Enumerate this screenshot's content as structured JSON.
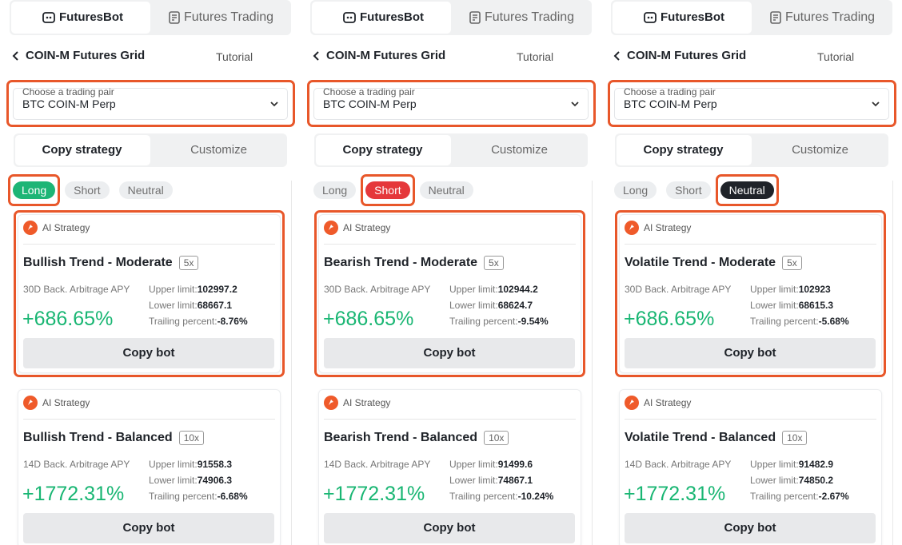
{
  "panels": [
    {
      "tabs": [
        "FuturesBot",
        "Futures Trading"
      ],
      "nav": {
        "back_title": "COIN-M Futures Grid",
        "link": "Tutorial"
      },
      "pair_select": {
        "label": "Choose a trading pair",
        "value": "BTC COIN-M Perp"
      },
      "mode_tabs": [
        "Copy strategy",
        "Customize"
      ],
      "filters": [
        "Long",
        "Short",
        "Neutral"
      ],
      "active_filter": 0,
      "active_filter_color": "#1db576",
      "cards": [
        {
          "badge": "AI Strategy",
          "name": "Bullish Trend - Moderate",
          "leverage": "5x",
          "apy_label": "30D Back. Arbitrage APY",
          "apy": "+686.65%",
          "upper_label": "Upper limit:",
          "upper": "102997.2",
          "lower_label": "Lower limit:",
          "lower": "68667.1",
          "trailing_label": "Trailing percent:",
          "trailing": "-8.76%",
          "button": "Copy bot"
        },
        {
          "badge": "AI Strategy",
          "name": "Bullish Trend - Balanced",
          "leverage": "10x",
          "apy_label": "14D Back. Arbitrage APY",
          "apy": "+1772.31%",
          "upper_label": "Upper limit:",
          "upper": "91558.3",
          "lower_label": "Lower limit:",
          "lower": "74906.3",
          "trailing_label": "Trailing percent:",
          "trailing": "-6.68%",
          "button": "Copy bot"
        }
      ]
    },
    {
      "tabs": [
        "FuturesBot",
        "Futures Trading"
      ],
      "nav": {
        "back_title": "COIN-M Futures Grid",
        "link": "Tutorial"
      },
      "pair_select": {
        "label": "Choose a trading pair",
        "value": "BTC COIN-M Perp"
      },
      "mode_tabs": [
        "Copy strategy",
        "Customize"
      ],
      "filters": [
        "Long",
        "Short",
        "Neutral"
      ],
      "active_filter": 1,
      "active_filter_color": "#e5383b",
      "cards": [
        {
          "badge": "AI Strategy",
          "name": "Bearish Trend - Moderate",
          "leverage": "5x",
          "apy_label": "30D Back. Arbitrage APY",
          "apy": "+686.65%",
          "upper_label": "Upper limit:",
          "upper": "102944.2",
          "lower_label": "Lower limit:",
          "lower": "68624.7",
          "trailing_label": "Trailing percent:",
          "trailing": "-9.54%",
          "button": "Copy bot"
        },
        {
          "badge": "AI Strategy",
          "name": "Bearish Trend - Balanced",
          "leverage": "10x",
          "apy_label": "14D Back. Arbitrage APY",
          "apy": "+1772.31%",
          "upper_label": "Upper limit:",
          "upper": "91499.6",
          "lower_label": "Lower limit:",
          "lower": "74867.1",
          "trailing_label": "Trailing percent:",
          "trailing": "-10.24%",
          "button": "Copy bot"
        }
      ]
    },
    {
      "tabs": [
        "FuturesBot",
        "Futures Trading"
      ],
      "nav": {
        "back_title": "COIN-M Futures Grid",
        "link": "Tutorial"
      },
      "pair_select": {
        "label": "Choose a trading pair",
        "value": "BTC COIN-M Perp"
      },
      "mode_tabs": [
        "Copy strategy",
        "Customize"
      ],
      "filters": [
        "Long",
        "Short",
        "Neutral"
      ],
      "active_filter": 2,
      "active_filter_color": "#1f2329",
      "cards": [
        {
          "badge": "AI Strategy",
          "name": "Volatile Trend - Moderate",
          "leverage": "5x",
          "apy_label": "30D Back. Arbitrage APY",
          "apy": "+686.65%",
          "upper_label": "Upper limit:",
          "upper": "102923",
          "lower_label": "Lower limit:",
          "lower": "68615.3",
          "trailing_label": "Trailing percent:",
          "trailing": "-5.68%",
          "button": "Copy bot"
        },
        {
          "badge": "AI Strategy",
          "name": "Volatile Trend - Balanced",
          "leverage": "10x",
          "apy_label": "14D Back. Arbitrage APY",
          "apy": "+1772.31%",
          "upper_label": "Upper limit:",
          "upper": "91482.9",
          "lower_label": "Lower limit:",
          "lower": "74850.2",
          "trailing_label": "Trailing percent:",
          "trailing": "-2.67%",
          "button": "Copy bot"
        }
      ]
    }
  ]
}
